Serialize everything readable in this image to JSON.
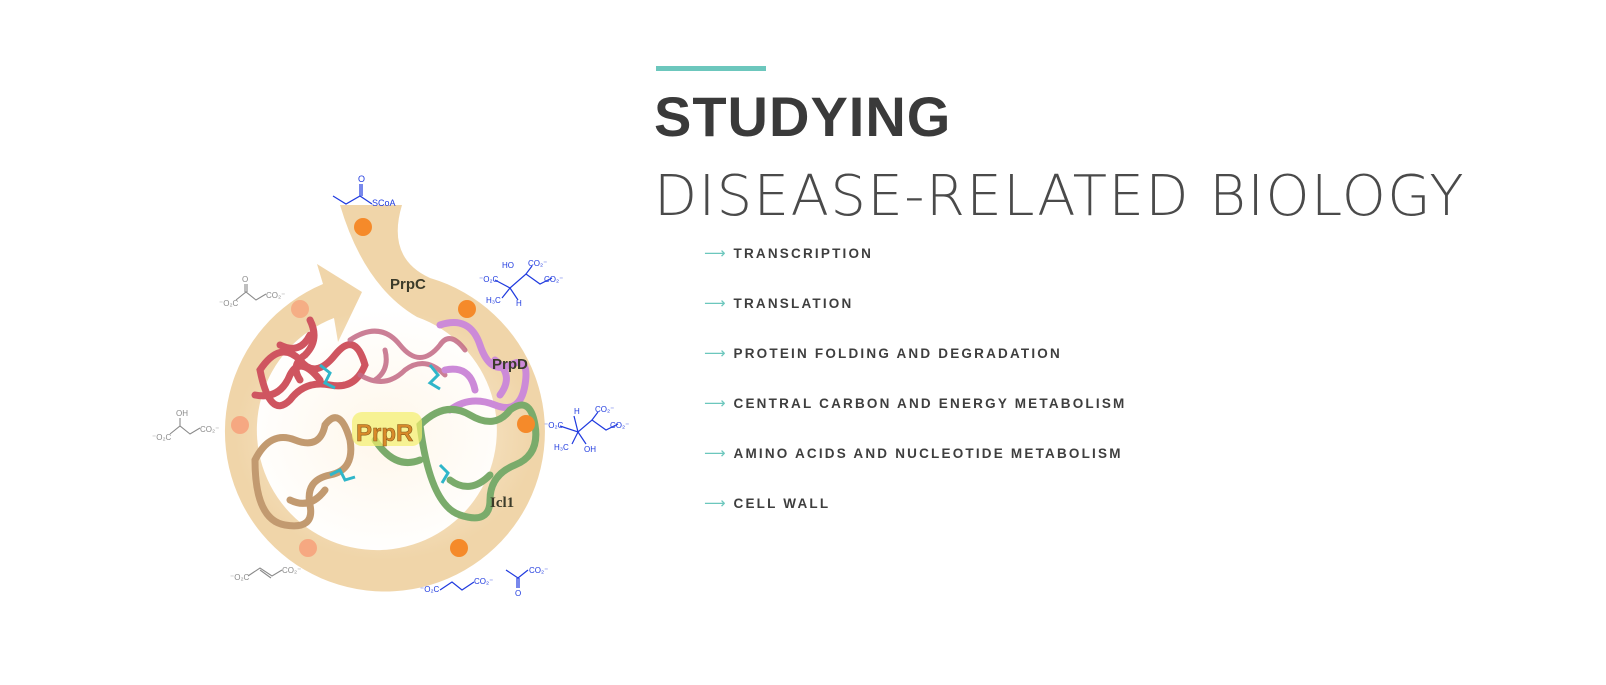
{
  "colors": {
    "accent": "#6cc7bd",
    "title": "#3a3a3a",
    "cycle": "#efd3a4",
    "dot": "#f58a2a",
    "molecule_blue": "#1f3adf",
    "molecule_gray": "#8a8a8a"
  },
  "heading": {
    "bold": "STUDYING",
    "light": "DISEASE-RELATED BIOLOGY"
  },
  "topics": [
    {
      "arrow": "⟶",
      "label": "TRANSCRIPTION"
    },
    {
      "arrow": "⟶",
      "label": "TRANSLATION"
    },
    {
      "arrow": "⟶",
      "label": "PROTEIN FOLDING AND DEGRADATION"
    },
    {
      "arrow": "⟶",
      "label": "CENTRAL CARBON AND ENERGY METABOLISM"
    },
    {
      "arrow": "⟶",
      "label": "AMINO ACIDS AND NUCLEOTIDE METABOLISM"
    },
    {
      "arrow": "⟶",
      "label": "CELL WALL"
    }
  ],
  "figure": {
    "enzymes": {
      "prpc": "PrpC",
      "prpd": "PrpD",
      "prpr": "PrpR",
      "icl1": "Icl1"
    },
    "molecules": {
      "propionyl_coa": {
        "o": "O",
        "group": "SCoA"
      },
      "methylcitrate": {
        "ho": "HO",
        "co2_top": "CO₂⁻",
        "co2_left": "⁻O₂C",
        "co2_right": "CO₂⁻",
        "h3c": "H₃C",
        "h": "H"
      },
      "methylisocitrate": {
        "h": "H",
        "co2_top": "CO₂⁻",
        "co2_left": "⁻O₂C",
        "co2_right": "CO₂⁻",
        "h3c": "H₃C",
        "oh": "OH"
      },
      "oxaloacetate": {
        "o": "O",
        "co2_left": "⁻O₂C",
        "co2_right": "CO₂⁻"
      },
      "malate": {
        "oh": "OH",
        "co2_left": "⁻O₂C",
        "co2_right": "CO₂⁻"
      },
      "fumarate": {
        "co2_left": "⁻O₂C",
        "co2_right": "CO₂⁻"
      },
      "succinate": {
        "co2_left": "⁻O₂C",
        "co2_right": "CO₂⁻"
      },
      "pyruvate": {
        "co2": "CO₂⁻",
        "o": "O"
      }
    }
  }
}
